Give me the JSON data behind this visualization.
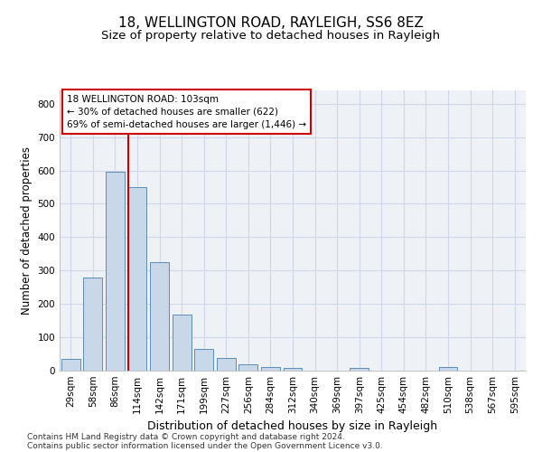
{
  "title1": "18, WELLINGTON ROAD, RAYLEIGH, SS6 8EZ",
  "title2": "Size of property relative to detached houses in Rayleigh",
  "xlabel": "Distribution of detached houses by size in Rayleigh",
  "ylabel": "Number of detached properties",
  "categories": [
    "29sqm",
    "58sqm",
    "86sqm",
    "114sqm",
    "142sqm",
    "171sqm",
    "199sqm",
    "227sqm",
    "256sqm",
    "284sqm",
    "312sqm",
    "340sqm",
    "369sqm",
    "397sqm",
    "425sqm",
    "454sqm",
    "482sqm",
    "510sqm",
    "538sqm",
    "567sqm",
    "595sqm"
  ],
  "values": [
    35,
    280,
    595,
    550,
    325,
    167,
    65,
    37,
    20,
    10,
    8,
    0,
    0,
    8,
    0,
    0,
    0,
    10,
    0,
    0,
    0
  ],
  "bar_color": "#c8d8e8",
  "bar_edge_color": "#5b8db8",
  "vline_x_index": 2.607,
  "annotation_text": "18 WELLINGTON ROAD: 103sqm\n← 30% of detached houses are smaller (622)\n69% of semi-detached houses are larger (1,446) →",
  "annotation_box_color": "#ffffff",
  "annotation_box_edge": "#cc0000",
  "vline_color": "#cc0000",
  "grid_color": "#d0d8e8",
  "background_color": "#eef2f7",
  "footnote1": "Contains HM Land Registry data © Crown copyright and database right 2024.",
  "footnote2": "Contains public sector information licensed under the Open Government Licence v3.0.",
  "ylim": [
    0,
    840
  ],
  "title1_fontsize": 11,
  "title2_fontsize": 9.5,
  "xlabel_fontsize": 9,
  "ylabel_fontsize": 8.5,
  "tick_fontsize": 7.5,
  "footnote_fontsize": 6.5,
  "annot_fontsize": 7.5
}
